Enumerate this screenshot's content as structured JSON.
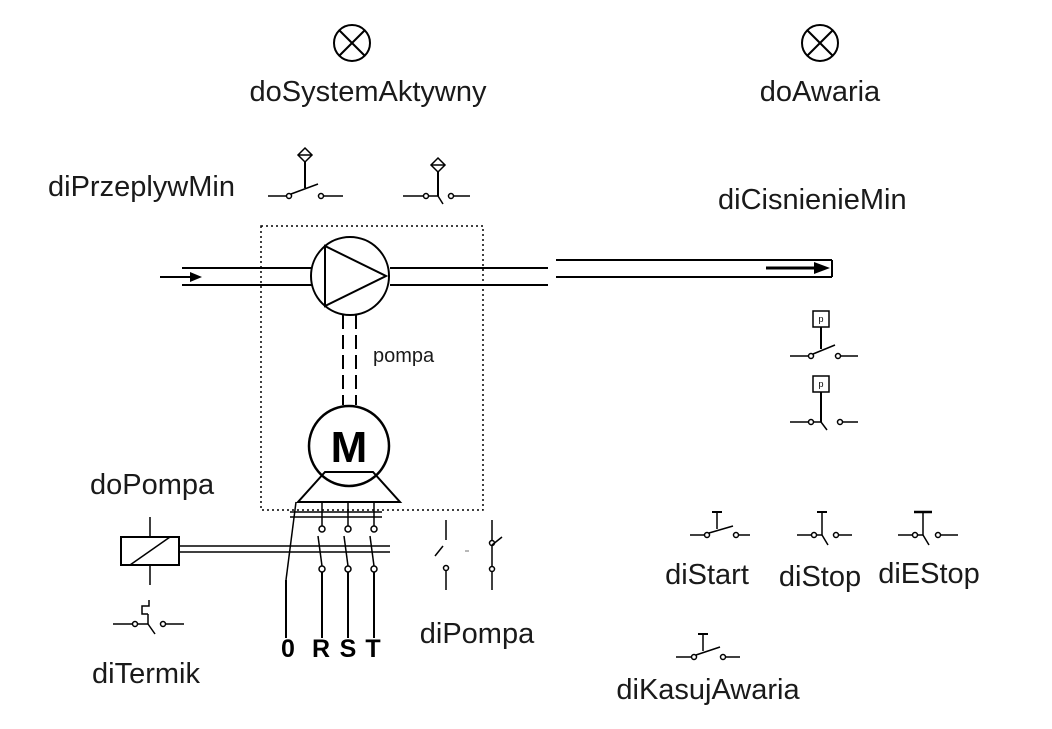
{
  "labels": {
    "do_system_aktywny": "doSystemAktywny",
    "do_awaria": "doAwaria",
    "di_przeplyw_min": "diPrzeplywMin",
    "di_cisnienie_min": "diCisnienieMin",
    "pompa": "pompa",
    "motor": "M",
    "do_pompa": "doPompa",
    "di_termik": "diTermik",
    "phase_0": "0",
    "phase_r": "R",
    "phase_s": "S",
    "phase_t": "T",
    "di_pompa": "diPompa",
    "di_start": "diStart",
    "di_stop": "diStop",
    "di_estop": "diEStop",
    "di_kasuj_awaria": "diKasujAwaria",
    "pressure_symbol_1": "p",
    "pressure_symbol_2": "p"
  }
}
